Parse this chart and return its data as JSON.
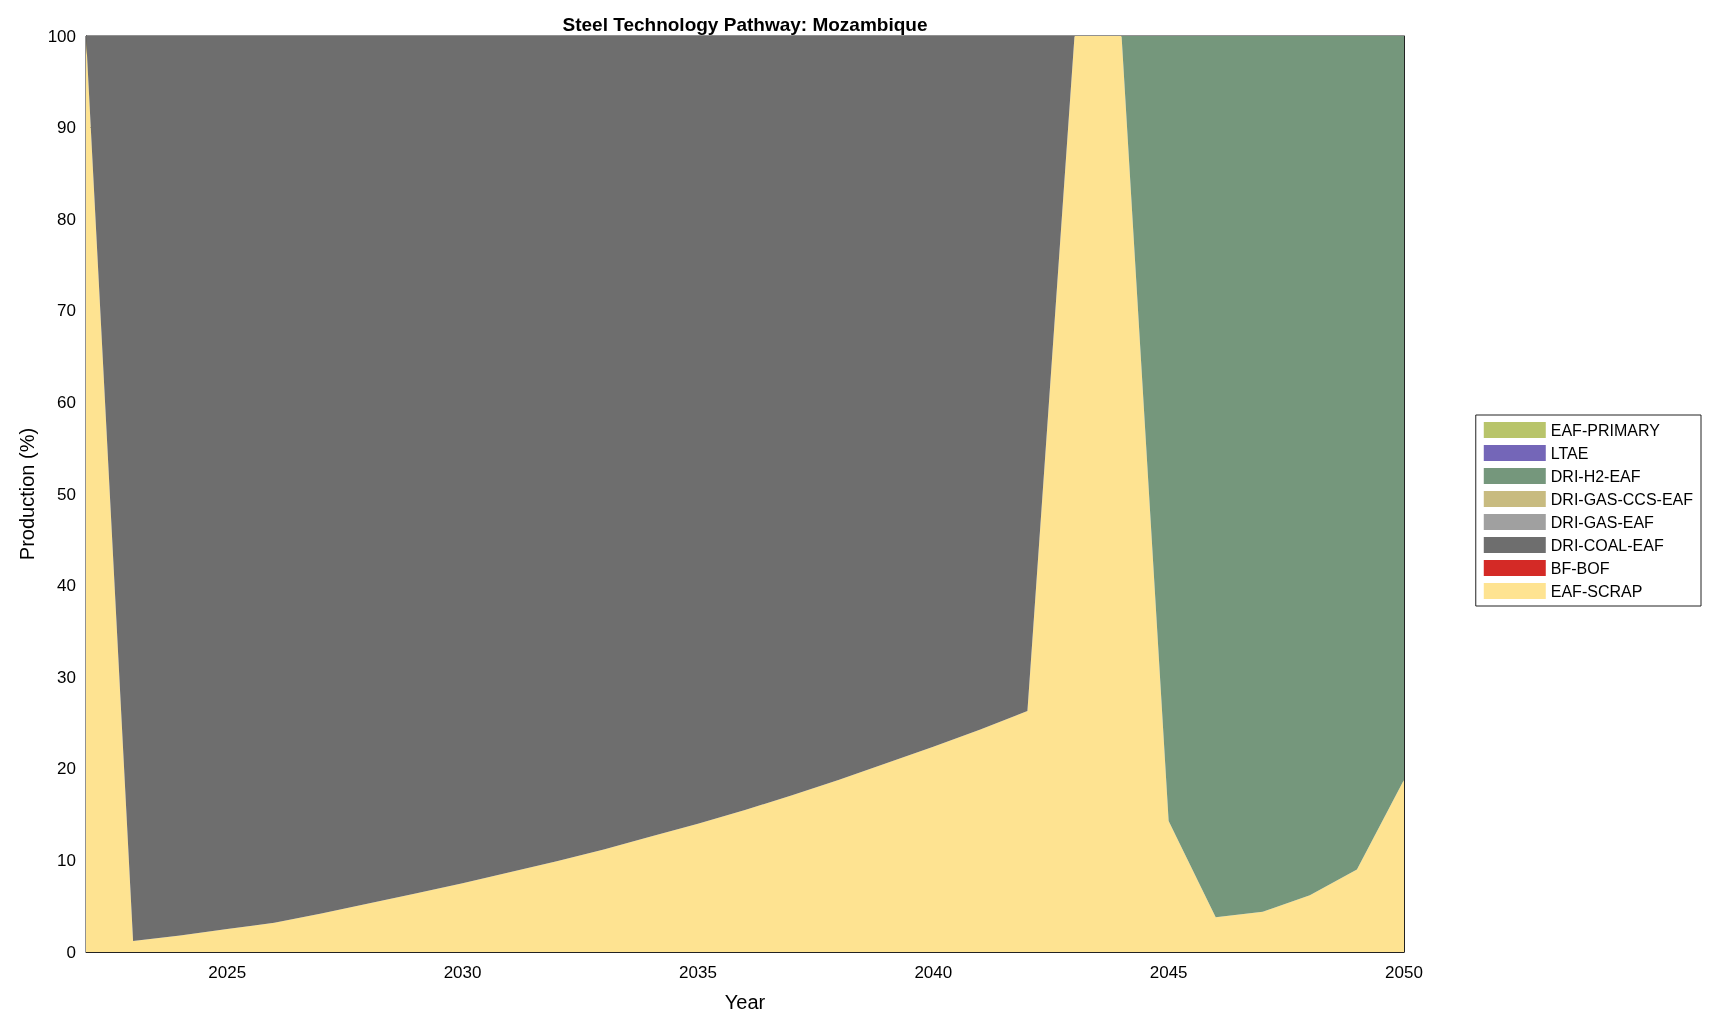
{
  "chart_data": {
    "type": "area",
    "title": "Steel Technology Pathway: Mozambique",
    "xlabel": "Year",
    "ylabel": "Production (%)",
    "x": [
      2022,
      2023,
      2024,
      2025,
      2026,
      2027,
      2028,
      2029,
      2030,
      2031,
      2032,
      2033,
      2034,
      2035,
      2036,
      2037,
      2038,
      2039,
      2040,
      2041,
      2042,
      2043,
      2044,
      2045,
      2046,
      2047,
      2048,
      2049,
      2050
    ],
    "stacked": true,
    "series": [
      {
        "name": "EAF-SCRAP",
        "color": "#fee391",
        "values": [
          100,
          1.2,
          1.8,
          2.5,
          3.2,
          4.2,
          5.3,
          6.4,
          7.5,
          8.7,
          9.9,
          11.2,
          12.6,
          14.0,
          15.5,
          17.1,
          18.8,
          20.6,
          22.4,
          24.3,
          26.3,
          100,
          100,
          14.3,
          3.8,
          4.4,
          6.2,
          9.0,
          18.8
        ]
      },
      {
        "name": "BF-BOF",
        "color": "#d42a26",
        "values": [
          null,
          null,
          null,
          null,
          null,
          null,
          null,
          null,
          null,
          null,
          null,
          null,
          null,
          null,
          null,
          null,
          null,
          null,
          null,
          null,
          null,
          null,
          null,
          null,
          null,
          null,
          null,
          null,
          null
        ]
      },
      {
        "name": "DRI-COAL-EAF",
        "color": "#6e6e6e",
        "values": [
          0,
          98.8,
          98.2,
          97.5,
          96.8,
          95.8,
          94.7,
          93.6,
          92.5,
          91.3,
          90.1,
          88.8,
          87.4,
          86.0,
          84.5,
          82.9,
          81.2,
          79.4,
          77.6,
          75.7,
          73.7,
          0,
          0,
          0,
          0,
          0,
          0,
          0,
          0
        ]
      },
      {
        "name": "DRI-GAS-EAF",
        "color": "#a0a0a0",
        "values": [
          null,
          null,
          null,
          null,
          null,
          null,
          null,
          null,
          null,
          null,
          null,
          null,
          null,
          null,
          null,
          null,
          null,
          null,
          null,
          null,
          null,
          null,
          null,
          null,
          null,
          null,
          null,
          null,
          null
        ]
      },
      {
        "name": "DRI-GAS-CCS-EAF",
        "color": "#c8bb80",
        "values": [
          null,
          null,
          null,
          null,
          null,
          null,
          null,
          null,
          null,
          null,
          null,
          null,
          null,
          null,
          null,
          null,
          null,
          null,
          null,
          null,
          null,
          null,
          null,
          null,
          null,
          null,
          null,
          null,
          null
        ]
      },
      {
        "name": "DRI-H2-EAF",
        "color": "#75977c",
        "values": [
          0,
          0,
          0,
          0,
          0,
          0,
          0,
          0,
          0,
          0,
          0,
          0,
          0,
          0,
          0,
          0,
          0,
          0,
          0,
          0,
          0,
          0,
          0,
          85.7,
          96.2,
          95.6,
          93.8,
          91.0,
          81.2
        ]
      },
      {
        "name": "LTAE",
        "color": "#7466b8",
        "values": [
          null,
          null,
          null,
          null,
          null,
          null,
          null,
          null,
          null,
          null,
          null,
          null,
          null,
          null,
          null,
          null,
          null,
          null,
          null,
          null,
          null,
          null,
          null,
          null,
          null,
          null,
          null,
          null,
          null
        ]
      },
      {
        "name": "EAF-PRIMARY",
        "color": "#b8c46a",
        "values": [
          null,
          null,
          null,
          null,
          null,
          null,
          null,
          null,
          null,
          null,
          null,
          null,
          null,
          null,
          null,
          null,
          null,
          null,
          null,
          null,
          null,
          null,
          null,
          null,
          null,
          null,
          null,
          null,
          null
        ]
      }
    ],
    "xlim": [
      2022,
      2050
    ],
    "xticks": [
      2025,
      2030,
      2035,
      2040,
      2045,
      2050
    ],
    "ylim": [
      0,
      100
    ],
    "yticks": [
      0,
      10,
      20,
      30,
      40,
      50,
      60,
      70,
      80,
      90,
      100
    ],
    "grid": false,
    "legend": "right"
  }
}
